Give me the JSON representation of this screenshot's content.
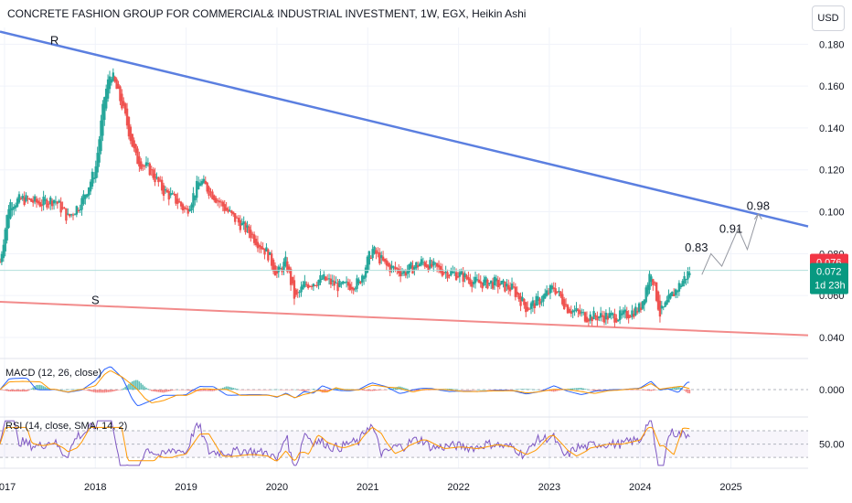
{
  "header": {
    "title": "CONCRETE FASHION GROUP FOR COMMERCIAL& INDUSTRIAL INVESTMENT, 1W, EGX, Heikin Ashi",
    "currency_button": "USD"
  },
  "indicators": {
    "macd_label": "MACD (12, 26, close)",
    "rsi_label": "RSI (14, close, SMA, 14, 2)"
  },
  "price_tags": {
    "red_value": "0.076",
    "green_value": "0.072",
    "countdown": "1d 23h"
  },
  "colors": {
    "up": "#26a69a",
    "down": "#ef5350",
    "resistance": "#5b7fe0",
    "support": "#f28b8b",
    "macd_line": "#2962ff",
    "signal_line": "#ff9800",
    "rsi_line": "#7e57c2",
    "rsi_ma": "#ff9800"
  },
  "chart_data": {
    "type": "candlestick",
    "title": "CONCRETE FASHION GROUP FOR COMMERCIAL& INDUSTRIAL INVESTMENT, 1W, EGX, Heikin Ashi",
    "x_ticks": [
      "2017",
      "2018",
      "2019",
      "2020",
      "2021",
      "2022",
      "2023",
      "2024",
      "2025"
    ],
    "y_ticks": [
      "0.040",
      "0.060",
      "0.080",
      "0.100",
      "0.120",
      "0.140",
      "0.160",
      "0.180"
    ],
    "ylim": [
      0.033,
      0.188
    ],
    "xlim": [
      2016.95,
      2025.85
    ],
    "series_close_approx": [
      [
        2016.95,
        0.076
      ],
      [
        2017.05,
        0.104
      ],
      [
        2017.2,
        0.106
      ],
      [
        2017.4,
        0.104
      ],
      [
        2017.55,
        0.106
      ],
      [
        2017.7,
        0.097
      ],
      [
        2017.85,
        0.105
      ],
      [
        2018.0,
        0.12
      ],
      [
        2018.1,
        0.155
      ],
      [
        2018.17,
        0.167
      ],
      [
        2018.3,
        0.15
      ],
      [
        2018.45,
        0.125
      ],
      [
        2018.6,
        0.12
      ],
      [
        2018.75,
        0.11
      ],
      [
        2018.9,
        0.105
      ],
      [
        2019.0,
        0.1
      ],
      [
        2019.15,
        0.115
      ],
      [
        2019.3,
        0.108
      ],
      [
        2019.5,
        0.098
      ],
      [
        2019.7,
        0.09
      ],
      [
        2019.9,
        0.08
      ],
      [
        2020.0,
        0.07
      ],
      [
        2020.1,
        0.076
      ],
      [
        2020.2,
        0.058
      ],
      [
        2020.3,
        0.065
      ],
      [
        2020.5,
        0.068
      ],
      [
        2020.7,
        0.064
      ],
      [
        2020.9,
        0.066
      ],
      [
        2021.05,
        0.082
      ],
      [
        2021.2,
        0.074
      ],
      [
        2021.4,
        0.071
      ],
      [
        2021.6,
        0.076
      ],
      [
        2021.8,
        0.072
      ],
      [
        2022.0,
        0.07
      ],
      [
        2022.2,
        0.066
      ],
      [
        2022.4,
        0.066
      ],
      [
        2022.6,
        0.063
      ],
      [
        2022.75,
        0.054
      ],
      [
        2022.9,
        0.058
      ],
      [
        2023.05,
        0.064
      ],
      [
        2023.2,
        0.054
      ],
      [
        2023.4,
        0.05
      ],
      [
        2023.6,
        0.05
      ],
      [
        2023.8,
        0.05
      ],
      [
        2024.0,
        0.054
      ],
      [
        2024.12,
        0.072
      ],
      [
        2024.22,
        0.051
      ],
      [
        2024.35,
        0.06
      ],
      [
        2024.45,
        0.066
      ],
      [
        2024.55,
        0.072
      ]
    ],
    "lines": [
      {
        "name": "R",
        "from": [
          2016.95,
          0.186
        ],
        "to": [
          2025.85,
          0.093
        ]
      },
      {
        "name": "S",
        "from": [
          2016.95,
          0.057
        ],
        "to": [
          2025.85,
          0.041
        ]
      }
    ],
    "projection_path": [
      [
        2024.68,
        0.07
      ],
      [
        2024.78,
        0.08
      ],
      [
        2024.9,
        0.074
      ],
      [
        2025.08,
        0.092
      ],
      [
        2025.18,
        0.082
      ],
      [
        2025.3,
        0.099
      ]
    ],
    "annotations": [
      {
        "text": "R",
        "x": 2017.55,
        "y": 0.18
      },
      {
        "text": "S",
        "x": 2018.0,
        "y": 0.056
      },
      {
        "text": "0.83",
        "x": 2024.62,
        "y": 0.081
      },
      {
        "text": "0.91",
        "x": 2025.0,
        "y": 0.09
      },
      {
        "text": "0.98",
        "x": 2025.3,
        "y": 0.101
      }
    ],
    "horizontal_line": 0.072,
    "macd": {
      "zero_label": "0.000"
    },
    "rsi": {
      "level_label": "50.00",
      "upper": 70,
      "lower": 30
    }
  }
}
